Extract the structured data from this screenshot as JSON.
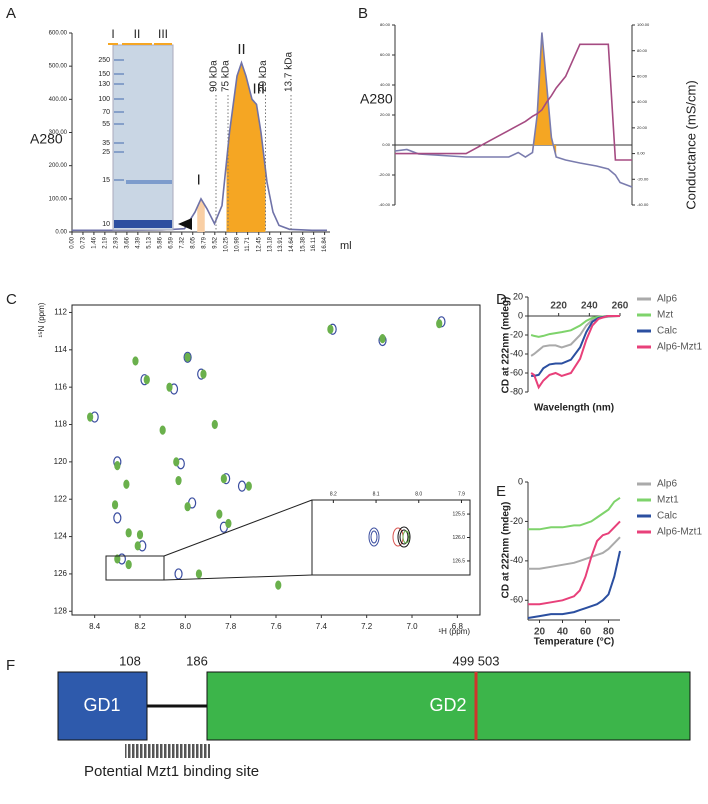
{
  "chart_data": [
    {
      "type": "line",
      "panel": "A",
      "ylabel": "A280",
      "xlabel": "ml",
      "xlim": [
        0,
        17.2
      ],
      "ylim": [
        0,
        600
      ],
      "xticks": [
        {
          "value": 0,
          "label": "0.00"
        },
        0.73,
        1.46,
        2.19,
        2.93,
        3.66,
        4.39,
        5.13,
        5.86,
        6.59,
        7.32,
        8.05,
        8.79,
        9.52,
        10.25,
        10.98,
        11.71,
        12.45,
        13.18,
        13.91,
        14.64,
        15.38,
        16.11,
        16.84
      ],
      "yticks": [
        {
          "value": 0,
          "label": "0.00"
        },
        {
          "value": 100,
          "label": "100.00"
        },
        {
          "value": 200,
          "label": "200.00"
        },
        {
          "value": 300,
          "label": "300.00"
        },
        {
          "value": 400,
          "label": "400.00"
        },
        {
          "value": 500,
          "label": "500.00"
        },
        {
          "value": 600,
          "label": "600.00"
        }
      ],
      "x": [
        0,
        2,
        4,
        6,
        7.5,
        8.2,
        8.6,
        9.0,
        9.5,
        10.0,
        10.5,
        11.0,
        11.3,
        11.6,
        12.0,
        12.3,
        12.6,
        13.0,
        13.4,
        13.8,
        14.5,
        16,
        17
      ],
      "series": [
        {
          "color": "#6f72a8",
          "values": [
            5,
            5,
            5,
            6,
            10,
            60,
            100,
            70,
            25,
            80,
            300,
            470,
            510,
            470,
            400,
            385,
            300,
            150,
            60,
            20,
            8,
            5,
            5
          ]
        }
      ],
      "annotations": [
        "90 kDa",
        "75 kDa",
        "29 kDa",
        "13.7 kDa"
      ],
      "peaks": [
        "I",
        "II",
        "III"
      ],
      "gel": {
        "lanes": [
          "I",
          "II",
          "III"
        ],
        "markers": [
          250,
          150,
          130,
          100,
          70,
          55,
          35,
          25,
          15,
          10
        ]
      }
    },
    {
      "type": "line",
      "panel": "B",
      "ylabel": "A280",
      "y2label": "Conductance (mS/cm)",
      "xlim": [
        0,
        100
      ],
      "ylim": [
        -40,
        80
      ],
      "y2lim": [
        -40,
        100
      ],
      "yticks": [
        {
          "value": -40,
          "label": "-40.00"
        },
        {
          "value": -20,
          "label": "-20.00"
        },
        {
          "value": 0,
          "label": "0.00"
        },
        {
          "value": 20,
          "label": "20.00"
        },
        {
          "value": 40,
          "label": "40.00"
        },
        {
          "value": 60,
          "label": "60.00"
        },
        {
          "value": 80,
          "label": "80.00"
        }
      ],
      "y2ticks": [
        {
          "value": -40,
          "label": "-40.00"
        },
        {
          "value": -20,
          "label": "-20.00"
        },
        {
          "value": 0,
          "label": "0.00"
        },
        {
          "value": 20,
          "label": "20.00"
        },
        {
          "value": 40,
          "label": "40.00"
        },
        {
          "value": 60,
          "label": "60.00"
        },
        {
          "value": 80,
          "label": "80.00"
        },
        {
          "value": 100,
          "label": "100.00"
        }
      ],
      "x": [
        0,
        5,
        10,
        20,
        30,
        40,
        45,
        48,
        52,
        55,
        58,
        60,
        62,
        64,
        66,
        68,
        72,
        78,
        85,
        90,
        93,
        95,
        100
      ],
      "series": [
        {
          "color": "#7a7cae",
          "values": [
            -4,
            -3,
            -6,
            -7,
            -8,
            -8,
            -8,
            -8,
            -5,
            -8,
            -5,
            20,
            75,
            40,
            5,
            -8,
            -10,
            -12,
            -14,
            -16,
            -20,
            -25,
            -28
          ]
        },
        {
          "color": "#a54b82",
          "axis": "y2",
          "values": [
            0,
            0,
            0,
            0,
            0,
            10,
            15,
            18,
            22,
            25,
            29,
            31,
            34,
            40,
            45,
            51,
            60,
            85,
            85,
            85,
            -5,
            -5,
            -5
          ]
        }
      ]
    },
    {
      "type": "scatter",
      "panel": "C",
      "xlabel": "¹H (ppm)",
      "ylabel": "¹⁵N (ppm)",
      "xlim": [
        8.5,
        6.7
      ],
      "ylim": [
        128.2,
        111.6
      ],
      "xticks": [
        8.4,
        8.2,
        {
          "value": 8,
          "label": "8.0"
        },
        7.8,
        7.6,
        7.4,
        7.2,
        {
          "value": 7,
          "label": "7.0"
        },
        6.8
      ],
      "yticks": [
        112,
        114,
        116,
        118,
        120,
        122,
        124,
        126,
        128
      ],
      "series": [
        {
          "color": "#6ab04c",
          "x": [
            8.42,
            8.3,
            8.31,
            8.25,
            8.3,
            8.22,
            8.17,
            8.07,
            8.04,
            8.03,
            7.99,
            7.99,
            7.92,
            7.87,
            7.83,
            7.81,
            8.2,
            8.21,
            8.25,
            7.94,
            7.59,
            7.72,
            7.36,
            7.13,
            6.88,
            7.85,
            8.1,
            8.26
          ],
          "values": [
            117.6,
            120.2,
            122.3,
            123.8,
            125.2,
            114.6,
            115.6,
            116.0,
            120.0,
            121.0,
            122.4,
            114.4,
            115.3,
            118.0,
            120.9,
            123.3,
            123.9,
            124.5,
            125.5,
            126.0,
            126.6,
            121.3,
            112.9,
            113.4,
            112.6,
            122.8,
            118.3,
            121.2
          ]
        },
        {
          "color": "#3b4ea0",
          "x": [
            8.4,
            8.3,
            8.18,
            8.05,
            8.02,
            7.97,
            7.99,
            7.93,
            7.82,
            7.83,
            8.19,
            8.03,
            7.35,
            7.13,
            6.87,
            8.3,
            7.75,
            8.28
          ],
          "values": [
            117.6,
            120.0,
            115.6,
            116.1,
            120.1,
            122.2,
            114.4,
            115.3,
            120.9,
            123.5,
            124.5,
            126.0,
            112.9,
            113.5,
            112.5,
            123.0,
            121.3,
            125.2
          ]
        }
      ],
      "inset": {
        "xticks": [
          8.2,
          8.1,
          {
            "value": 8,
            "label": "8.0"
          },
          7.9
        ],
        "yticks": [
          125.5,
          {
            "value": 126,
            "label": "126.0"
          },
          126.5
        ]
      }
    },
    {
      "type": "line",
      "panel": "D",
      "xlabel": "Wavelength (nm)",
      "ylabel": "CD at 222nm (mdeg)",
      "xlim": [
        200,
        260
      ],
      "ylim": [
        -80,
        20
      ],
      "xticks": [
        220,
        240,
        260
      ],
      "yticks": [
        20,
        0,
        -20,
        -40,
        -60,
        -80
      ],
      "x": [
        202,
        204,
        207,
        210,
        214,
        218,
        222,
        228,
        234,
        238,
        242,
        246,
        252,
        260
      ],
      "series": [
        {
          "name": "Alp6",
          "color": "#aaaaaa",
          "values": [
            -42,
            -40,
            -36,
            -32,
            -31,
            -31,
            -33,
            -30,
            -20,
            -10,
            -4,
            -2,
            -1,
            0
          ]
        },
        {
          "name": "Mzt",
          "color": "#7ed36b",
          "values": [
            -20,
            -21,
            -22,
            -21,
            -19,
            -18,
            -17,
            -15,
            -10,
            -5,
            -2,
            -1,
            0,
            0
          ]
        },
        {
          "name": "Calc",
          "color": "#2b4fa0",
          "values": [
            -63,
            -63,
            -62,
            -55,
            -51,
            -50,
            -50,
            -46,
            -33,
            -17,
            -6,
            -2,
            0,
            0
          ]
        },
        {
          "name": "Alp6-Mzt1",
          "color": "#e8407a",
          "values": [
            -60,
            -62,
            -75,
            -68,
            -62,
            -60,
            -63,
            -60,
            -45,
            -25,
            -10,
            -3,
            0,
            0
          ]
        }
      ]
    },
    {
      "type": "line",
      "panel": "E",
      "xlabel": "Temperature (°C)",
      "ylabel": "CD at 222nm (mdeg)",
      "xlim": [
        10,
        90
      ],
      "ylim": [
        -70,
        0
      ],
      "xticks": [
        20,
        40,
        60,
        80
      ],
      "yticks": [
        0,
        -20,
        -40,
        -60
      ],
      "x": [
        10,
        20,
        30,
        40,
        50,
        55,
        60,
        65,
        70,
        75,
        80,
        85,
        90
      ],
      "series": [
        {
          "name": "Alp6",
          "color": "#aaaaaa",
          "values": [
            -44,
            -44,
            -43,
            -42,
            -41,
            -40,
            -39,
            -38,
            -37,
            -36,
            -34,
            -31,
            -28
          ]
        },
        {
          "name": "Mzt1",
          "color": "#7ed36b",
          "values": [
            -24,
            -24,
            -23,
            -23,
            -22,
            -22,
            -21,
            -20,
            -18,
            -16,
            -14,
            -10,
            -8
          ]
        },
        {
          "name": "Calc",
          "color": "#2b4fa0",
          "values": [
            -69,
            -68,
            -67,
            -67,
            -66,
            -65,
            -64,
            -63,
            -62,
            -60,
            -57,
            -48,
            -35
          ]
        },
        {
          "name": "Alp6-Mzt1",
          "color": "#e8407a",
          "values": [
            -62,
            -62,
            -61,
            -60,
            -58,
            -55,
            -48,
            -38,
            -30,
            -27,
            -26,
            -23,
            -20
          ]
        }
      ]
    }
  ],
  "diagram": {
    "panel": "F",
    "domains": [
      "GD1",
      "GD2"
    ],
    "positions": [
      "108",
      "186",
      "499 503"
    ],
    "binding_site": "Potential Mzt1 binding site"
  }
}
